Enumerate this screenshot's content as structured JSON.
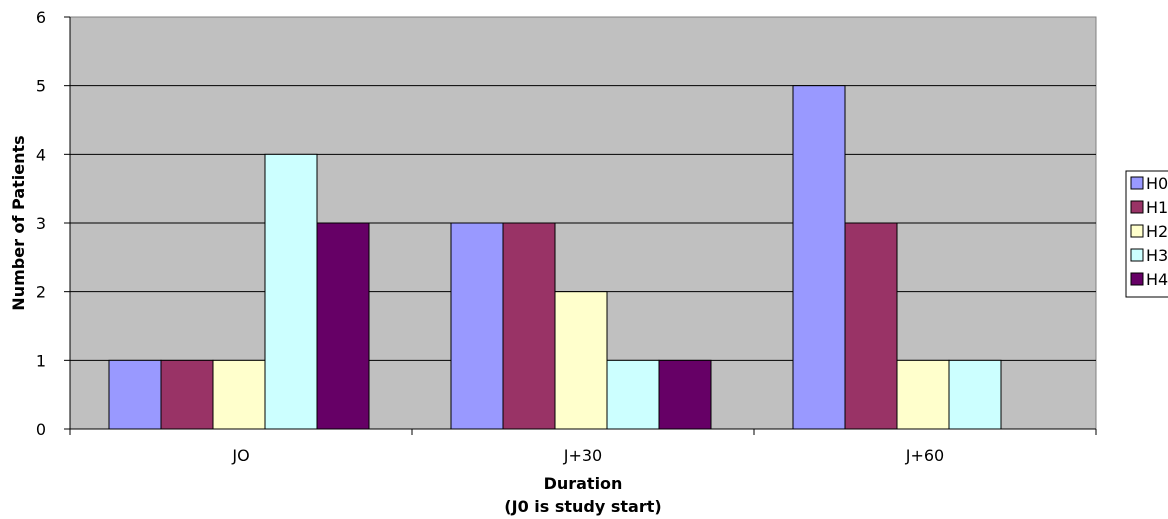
{
  "chart_data": {
    "type": "bar",
    "title": "",
    "xlabel": "Duration",
    "xlabel_sub": "(J0 is study start)",
    "ylabel": "Number of Patients",
    "categories": [
      "JO",
      "J+30",
      "J+60"
    ],
    "ylim": [
      0,
      6
    ],
    "yticks": [
      0,
      1,
      2,
      3,
      4,
      5,
      6
    ],
    "grid": true,
    "legend_position": "right",
    "background": "#c0c0c0",
    "series": [
      {
        "name": "H0",
        "color": "#9999ff",
        "values": [
          1,
          3,
          5
        ]
      },
      {
        "name": "H1",
        "color": "#993366",
        "values": [
          1,
          3,
          3
        ]
      },
      {
        "name": "H2",
        "color": "#ffffcc",
        "values": [
          1,
          2,
          1
        ]
      },
      {
        "name": "H3",
        "color": "#ccffff",
        "values": [
          4,
          1,
          1
        ]
      },
      {
        "name": "H4",
        "color": "#660066",
        "values": [
          3,
          1,
          0
        ]
      }
    ]
  }
}
